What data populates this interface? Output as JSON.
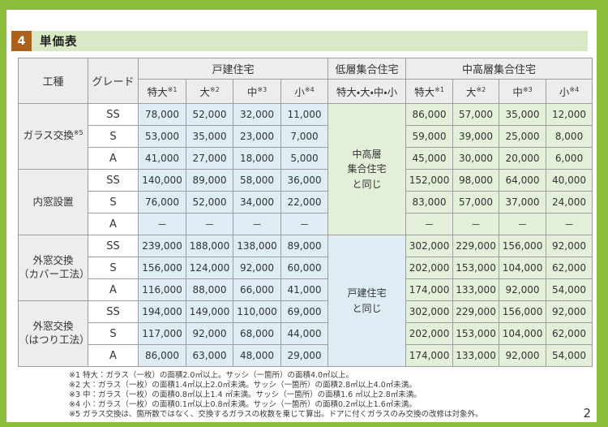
{
  "page": {
    "section_number": "4",
    "title": "単価表",
    "page_number": "2"
  },
  "table": {
    "corner_headers": {
      "work_type": "工種",
      "grade": "グレード"
    },
    "group_headers": {
      "detached": "戸建住宅",
      "low_rise": "低層集合住宅",
      "mid_high": "中高層集合住宅"
    },
    "size_headers": [
      {
        "label": "特大",
        "note": "※1"
      },
      {
        "label": "大",
        "note": "※2"
      },
      {
        "label": "中",
        "note": "※3"
      },
      {
        "label": "小",
        "note": "※4"
      }
    ],
    "low_rise_size_header": "特大・大・中・小",
    "groups": [
      {
        "name_lines": [
          "ガラス交換"
        ],
        "note": "※5",
        "rows": [
          {
            "grade": "SS",
            "detached": [
              "78,000",
              "52,000",
              "32,000",
              "11,000"
            ],
            "mid_high": [
              "86,000",
              "57,000",
              "35,000",
              "12,000"
            ]
          },
          {
            "grade": "S",
            "detached": [
              "53,000",
              "35,000",
              "23,000",
              "7,000"
            ],
            "mid_high": [
              "59,000",
              "39,000",
              "25,000",
              "8,000"
            ]
          },
          {
            "grade": "A",
            "detached": [
              "41,000",
              "27,000",
              "18,000",
              "5,000"
            ],
            "mid_high": [
              "45,000",
              "30,000",
              "20,000",
              "6,000"
            ]
          }
        ]
      },
      {
        "name_lines": [
          "内窓設置"
        ],
        "note": "",
        "rows": [
          {
            "grade": "SS",
            "detached": [
              "140,000",
              "89,000",
              "58,000",
              "36,000"
            ],
            "mid_high": [
              "152,000",
              "98,000",
              "64,000",
              "40,000"
            ]
          },
          {
            "grade": "S",
            "detached": [
              "76,000",
              "52,000",
              "34,000",
              "22,000"
            ],
            "mid_high": [
              "83,000",
              "57,000",
              "37,000",
              "24,000"
            ]
          },
          {
            "grade": "A",
            "detached": [
              "－",
              "－",
              "－",
              "－"
            ],
            "mid_high": [
              "－",
              "－",
              "－",
              "－"
            ]
          }
        ]
      },
      {
        "name_lines": [
          "外窓交換",
          "（カバー工法）"
        ],
        "note": "",
        "rows": [
          {
            "grade": "SS",
            "detached": [
              "239,000",
              "188,000",
              "138,000",
              "89,000"
            ],
            "mid_high": [
              "302,000",
              "229,000",
              "156,000",
              "92,000"
            ]
          },
          {
            "grade": "S",
            "detached": [
              "156,000",
              "124,000",
              "92,000",
              "60,000"
            ],
            "mid_high": [
              "202,000",
              "153,000",
              "104,000",
              "62,000"
            ]
          },
          {
            "grade": "A",
            "detached": [
              "116,000",
              "88,000",
              "66,000",
              "41,000"
            ],
            "mid_high": [
              "174,000",
              "133,000",
              "92,000",
              "54,000"
            ]
          }
        ]
      },
      {
        "name_lines": [
          "外窓交換",
          "（はつり工法）"
        ],
        "note": "",
        "rows": [
          {
            "grade": "SS",
            "detached": [
              "194,000",
              "149,000",
              "110,000",
              "69,000"
            ],
            "mid_high": [
              "302,000",
              "229,000",
              "156,000",
              "92,000"
            ]
          },
          {
            "grade": "S",
            "detached": [
              "117,000",
              "92,000",
              "68,000",
              "44,000"
            ],
            "mid_high": [
              "202,000",
              "153,000",
              "104,000",
              "62,000"
            ]
          },
          {
            "grade": "A",
            "detached": [
              "86,000",
              "63,000",
              "48,000",
              "29,000"
            ],
            "mid_high": [
              "174,000",
              "133,000",
              "92,000",
              "54,000"
            ]
          }
        ]
      }
    ],
    "low_rise_merged": [
      {
        "lines": [
          "中高層",
          "集合住宅",
          "と同じ"
        ],
        "span": 6,
        "style": "green"
      },
      {
        "lines": [
          "戸建住宅",
          "と同じ"
        ],
        "span": 6,
        "style": "blue"
      }
    ]
  },
  "footnotes": [
    "※1 特大：ガラス（一枚）の面積2.0㎡以上。サッシ（一箇所）の面積4.0㎡以上。",
    "※2 大：ガラス（一枚）の面積1.4㎡以上2.0㎡未満。サッシ（一箇所）の面積2.8㎡以上4.0㎡未満。",
    "※3 中：ガラス（一枚）の面積0.8㎡以上1.4 ㎡未満。サッシ（一箇所）の面積1.6 ㎡以上2.8㎡未満。",
    "※4 小：ガラス（一枚）の面積0.1㎡以上0.8㎡未満。サッシ（一箇所）の面積0.2㎡以上1.6㎡未満。",
    "※5 ガラス交換は、箇所数ではなく、交換するガラスの枚数を乗じて算出。ドアに付くガラスのみ交換の改修は対象外。"
  ],
  "colors": {
    "frame_green": "#8bbd3b",
    "title_strip_green": "#d9e8c5",
    "number_box_brown": "#a9611b",
    "header_gray": "#ededed",
    "detached_blue": "#ddedf3",
    "apartment_green": "#e3efd8"
  }
}
